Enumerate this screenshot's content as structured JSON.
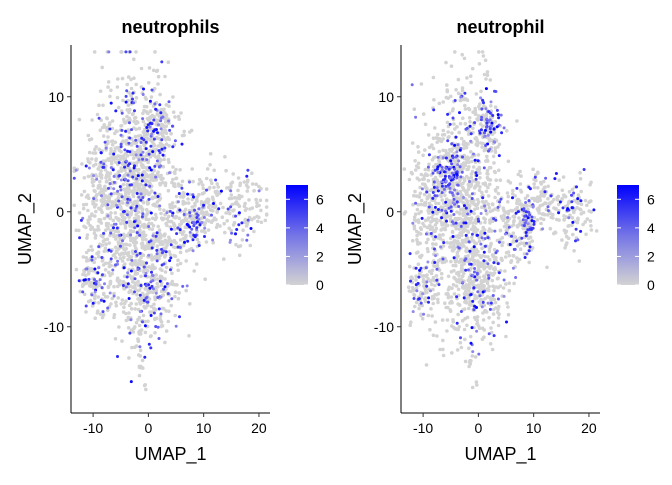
{
  "chart_data": [
    {
      "type": "scatter",
      "title": "neutrophils",
      "xlabel": "UMAP_1",
      "ylabel": "UMAP_2",
      "xlim": [
        -14,
        22
      ],
      "ylim": [
        -17.5,
        14.5
      ],
      "xticks": [
        -10,
        0,
        10,
        20
      ],
      "yticks": [
        10,
        0,
        -10
      ],
      "legend": {
        "ticks": [
          6,
          4,
          2,
          0
        ],
        "range": [
          0,
          7
        ],
        "placement": "right"
      },
      "color_low": "#D3D3D3",
      "color_high": "#0000FF",
      "grid": false,
      "clusters": [
        {
          "x": -3,
          "y": 1,
          "sx": 3.5,
          "sy": 5,
          "n": 900,
          "high_frac": 0.18
        },
        {
          "x": -1,
          "y": 5,
          "sx": 3,
          "sy": 2.5,
          "n": 260,
          "high_frac": 0.2
        },
        {
          "x": 2,
          "y": 7.5,
          "sx": 1.5,
          "sy": 1.2,
          "n": 90,
          "high_frac": 0.2
        },
        {
          "x": 0,
          "y": -6,
          "sx": 3,
          "sy": 2.5,
          "n": 320,
          "high_frac": 0.22
        },
        {
          "x": -9,
          "y": 1,
          "sx": 2,
          "sy": 3,
          "n": 170,
          "high_frac": 0.1
        },
        {
          "x": -11,
          "y": -6,
          "sx": 1,
          "sy": 1.2,
          "n": 50,
          "high_frac": 0.25
        },
        {
          "x": -9,
          "y": -7,
          "sx": 1.5,
          "sy": 1.5,
          "n": 60,
          "high_frac": 0.2
        },
        {
          "x": 6,
          "y": -1,
          "sx": 2,
          "sy": 2,
          "n": 140,
          "high_frac": 0.22
        },
        {
          "x": 8.5,
          "y": -1,
          "sx": 0.8,
          "sy": 0.8,
          "n": 50,
          "high_frac": 0.5
        },
        {
          "x": 11,
          "y": 1,
          "sx": 2,
          "sy": 1.5,
          "n": 110,
          "high_frac": 0.15
        },
        {
          "x": 17,
          "y": 0,
          "sx": 2,
          "sy": 1.5,
          "n": 110,
          "high_frac": 0.18
        },
        {
          "x": -1.5,
          "y": -13,
          "sx": 0.3,
          "sy": 0.6,
          "n": 10,
          "high_frac": 0
        },
        {
          "x": -0.5,
          "y": -15.2,
          "sx": 0.2,
          "sy": 0.2,
          "n": 3,
          "high_frac": 0
        },
        {
          "x": 1.5,
          "y": 12,
          "sx": 0.3,
          "sy": 0.3,
          "n": 4,
          "high_frac": 0
        },
        {
          "x": -3,
          "y": 10,
          "sx": 0.5,
          "sy": 0.4,
          "n": 10,
          "high_frac": 0.2
        }
      ]
    },
    {
      "type": "scatter",
      "title": "neutrophil",
      "xlabel": "UMAP_1",
      "ylabel": "UMAP_2",
      "xlim": [
        -14,
        22
      ],
      "ylim": [
        -17.5,
        14.5
      ],
      "xticks": [
        -10,
        0,
        10,
        20
      ],
      "yticks": [
        10,
        0,
        -10
      ],
      "legend": {
        "ticks": [
          6,
          4,
          2,
          0
        ],
        "range": [
          0,
          7
        ],
        "placement": "right"
      },
      "color_low": "#D3D3D3",
      "color_high": "#0000FF",
      "grid": false,
      "clusters": [
        {
          "x": -3,
          "y": 1,
          "sx": 3.5,
          "sy": 5,
          "n": 900,
          "high_frac": 0.12
        },
        {
          "x": -5,
          "y": 3,
          "sx": 1.2,
          "sy": 1.5,
          "n": 120,
          "high_frac": 0.5
        },
        {
          "x": 2,
          "y": 7.5,
          "sx": 1,
          "sy": 1,
          "n": 90,
          "high_frac": 0.5
        },
        {
          "x": 0,
          "y": -6,
          "sx": 3,
          "sy": 2.5,
          "n": 320,
          "high_frac": 0.22
        },
        {
          "x": -9,
          "y": 1,
          "sx": 2,
          "sy": 3,
          "n": 170,
          "high_frac": 0.12
        },
        {
          "x": -11,
          "y": -6,
          "sx": 1,
          "sy": 1.2,
          "n": 50,
          "high_frac": 0.3
        },
        {
          "x": -9,
          "y": -7,
          "sx": 1.5,
          "sy": 1.5,
          "n": 60,
          "high_frac": 0.2
        },
        {
          "x": 6,
          "y": -1,
          "sx": 2,
          "sy": 2,
          "n": 140,
          "high_frac": 0.2
        },
        {
          "x": 8.5,
          "y": -1,
          "sx": 0.8,
          "sy": 0.8,
          "n": 50,
          "high_frac": 0.5
        },
        {
          "x": 11,
          "y": 1,
          "sx": 2,
          "sy": 1.5,
          "n": 110,
          "high_frac": 0.15
        },
        {
          "x": 17,
          "y": 0,
          "sx": 2,
          "sy": 1.5,
          "n": 110,
          "high_frac": 0.15
        },
        {
          "x": -1.5,
          "y": -13,
          "sx": 0.3,
          "sy": 0.6,
          "n": 10,
          "high_frac": 0.3
        },
        {
          "x": -0.5,
          "y": -15.2,
          "sx": 0.2,
          "sy": 0.2,
          "n": 3,
          "high_frac": 0
        },
        {
          "x": 1.5,
          "y": 12,
          "sx": 0.3,
          "sy": 0.3,
          "n": 4,
          "high_frac": 0
        },
        {
          "x": -3,
          "y": 10,
          "sx": 0.5,
          "sy": 0.4,
          "n": 10,
          "high_frac": 0.2
        }
      ]
    }
  ]
}
